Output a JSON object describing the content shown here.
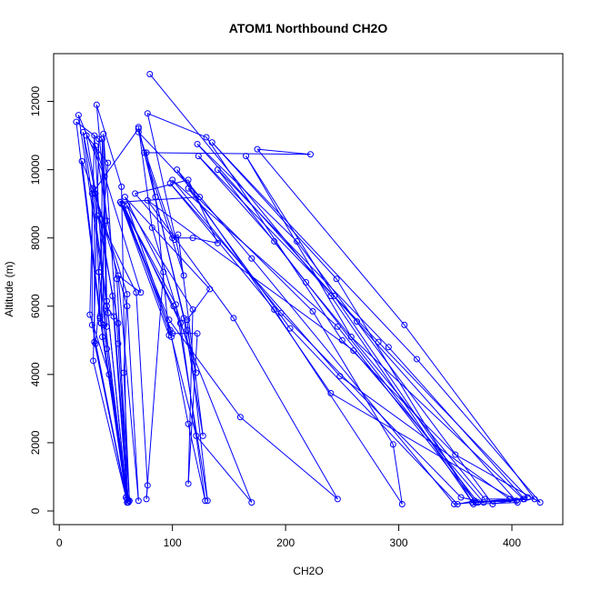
{
  "chart_data": {
    "type": "scatter",
    "title": "ATOM1 Northbound CH2O",
    "xlabel": "CH2O",
    "ylabel": "Altitude (m)",
    "xlim": [
      -5,
      445
    ],
    "ylim": [
      -400,
      13400
    ],
    "xticks": [
      0,
      100,
      200,
      300,
      400
    ],
    "yticks": [
      0,
      2000,
      4000,
      6000,
      8000,
      10000,
      12000
    ],
    "colors": {
      "series": "#0000ff",
      "axis": "#000000",
      "background": "#ffffff"
    },
    "marker": "open-circle",
    "connect_points": true,
    "grid": false,
    "series": [
      {
        "points": [
          [
            80,
            12800
          ],
          [
            240,
            6300
          ],
          [
            365,
            250
          ],
          [
            420,
            350
          ],
          [
            305,
            5450
          ],
          [
            175,
            10600
          ],
          [
            222,
            10450
          ],
          [
            75,
            10500
          ],
          [
            110,
            6900
          ],
          [
            78,
            11650
          ],
          [
            130,
            10950
          ],
          [
            250,
            5000
          ],
          [
            350,
            1650
          ],
          [
            425,
            250
          ],
          [
            316,
            4450
          ],
          [
            135,
            10800
          ],
          [
            245,
            6800
          ],
          [
            366,
            200
          ],
          [
            405,
            250
          ],
          [
            263,
            5550
          ],
          [
            122,
            10750
          ],
          [
            210,
            7900
          ],
          [
            383,
            200
          ],
          [
            414,
            400
          ],
          [
            282,
            4950
          ],
          [
            123,
            10400
          ],
          [
            190,
            7900
          ],
          [
            370,
            250
          ],
          [
            411,
            350
          ],
          [
            291,
            4800
          ],
          [
            140,
            10000
          ],
          [
            218,
            6700
          ],
          [
            376,
            350
          ],
          [
            410,
            350
          ],
          [
            258,
            5100
          ],
          [
            165,
            10400
          ],
          [
            243,
            6300
          ],
          [
            368,
            250
          ],
          [
            404,
            300
          ],
          [
            240,
            3450
          ],
          [
            104,
            10000
          ],
          [
            170,
            7400
          ],
          [
            349,
            200
          ],
          [
            398,
            350
          ],
          [
            248,
            3950
          ],
          [
            98,
            9600
          ],
          [
            190,
            5900
          ],
          [
            303,
            200
          ],
          [
            295,
            1950
          ],
          [
            224,
            5850
          ],
          [
            114,
            9450
          ],
          [
            204,
            5350
          ],
          [
            352,
            200
          ],
          [
            367,
            300
          ],
          [
            246,
            5400
          ],
          [
            100,
            9700
          ],
          [
            196,
            5800
          ],
          [
            355,
            400
          ],
          [
            375,
            250
          ],
          [
            260,
            4700
          ],
          [
            78,
            9100
          ],
          [
            154,
            5650
          ],
          [
            246,
            350
          ],
          [
            160,
            2750
          ],
          [
            97,
            5600
          ],
          [
            55,
            9000
          ],
          [
            101,
            6000
          ],
          [
            170,
            250
          ],
          [
            121,
            2200
          ],
          [
            99,
            5100
          ],
          [
            57,
            8950
          ],
          [
            107,
            5500
          ],
          [
            129,
            300
          ],
          [
            114,
            2550
          ],
          [
            98,
            5300
          ],
          [
            60,
            8950
          ],
          [
            118,
            5900
          ],
          [
            114,
            800
          ],
          [
            122,
            5200
          ],
          [
            100,
            5200
          ],
          [
            54,
            9050
          ],
          [
            103,
            6050
          ],
          [
            131,
            300
          ],
          [
            113,
            5600
          ],
          [
            133,
            6500
          ],
          [
            58,
            9200
          ],
          [
            92,
            7000
          ],
          [
            77,
            350
          ],
          [
            78,
            750
          ],
          [
            68,
            6400
          ],
          [
            34,
            8650
          ],
          [
            52,
            5500
          ],
          [
            62,
            300
          ],
          [
            57,
            4050
          ],
          [
            60,
            6350
          ],
          [
            30,
            9450
          ],
          [
            60,
            6000
          ],
          [
            70,
            300
          ],
          [
            52,
            6900
          ],
          [
            72,
            6400
          ],
          [
            32,
            10700
          ],
          [
            51,
            6800
          ],
          [
            60,
            350
          ],
          [
            48,
            5700
          ],
          [
            42,
            6000
          ],
          [
            39,
            11050
          ],
          [
            52,
            4900
          ],
          [
            61,
            250
          ],
          [
            39,
            5450
          ],
          [
            42,
            5400
          ],
          [
            38,
            10900
          ],
          [
            37,
            5500
          ],
          [
            60,
            350
          ],
          [
            44,
            4000
          ],
          [
            27,
            5750
          ],
          [
            31,
            11000
          ],
          [
            42,
            4750
          ],
          [
            59,
            400
          ],
          [
            32,
            4900
          ],
          [
            42,
            8500
          ],
          [
            33,
            11900
          ],
          [
            55,
            9500
          ],
          [
            60,
            250
          ],
          [
            35,
            7000
          ],
          [
            43,
            10200
          ],
          [
            24,
            11000
          ],
          [
            47,
            6300
          ],
          [
            61,
            300
          ],
          [
            38,
            5100
          ],
          [
            40,
            9800
          ],
          [
            17,
            11600
          ],
          [
            43,
            5800
          ],
          [
            60,
            250
          ],
          [
            30,
            4400
          ],
          [
            35,
            10900
          ],
          [
            15,
            11400
          ],
          [
            36,
            5650
          ],
          [
            60,
            350
          ],
          [
            36,
            5700
          ],
          [
            32,
            9300
          ],
          [
            21,
            11100
          ],
          [
            42,
            6150
          ],
          [
            60,
            250
          ],
          [
            31,
            4950
          ],
          [
            31,
            9300
          ],
          [
            20,
            10250
          ],
          [
            37,
            5500
          ],
          [
            59,
            400
          ],
          [
            29,
            5450
          ],
          [
            29,
            9300
          ],
          [
            70,
            11200
          ],
          [
            113,
            5300
          ],
          [
            121,
            4050
          ],
          [
            82,
            8300
          ],
          [
            70,
            11250
          ],
          [
            110,
            5650
          ],
          [
            127,
            2200
          ],
          [
            105,
            8100
          ],
          [
            100,
            8000
          ],
          [
            118,
            8000
          ],
          [
            140,
            7850
          ],
          [
            114,
            9700
          ],
          [
            67,
            9300
          ],
          [
            102,
            7950
          ],
          [
            70,
            11100
          ],
          [
            124,
            9200
          ],
          [
            54,
            9050
          ],
          [
            97,
            5150
          ],
          [
            85,
            9200
          ],
          [
            77,
            10500
          ]
        ]
      }
    ]
  }
}
